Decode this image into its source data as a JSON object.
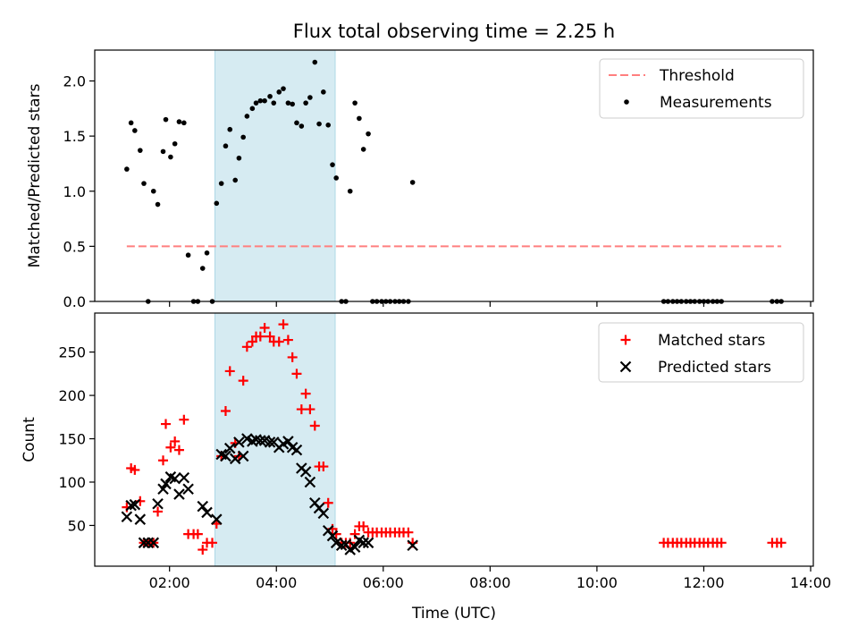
{
  "chart_data": {
    "title": "Flux total observing time = 2.25 h",
    "x_axis": {
      "label": "Time (UTC)",
      "range_hours": [
        0.6,
        14.05
      ],
      "ticks": [
        {
          "value": 2,
          "label": "02:00"
        },
        {
          "value": 4,
          "label": "04:00"
        },
        {
          "value": 6,
          "label": "06:00"
        },
        {
          "value": 8,
          "label": "08:00"
        },
        {
          "value": 10,
          "label": "10:00"
        },
        {
          "value": 12,
          "label": "12:00"
        },
        {
          "value": 14,
          "label": "14:00"
        }
      ]
    },
    "highlight_span_hours": [
      2.85,
      5.1
    ],
    "top_panel": {
      "type": "scatter",
      "ylabel": "Matched/Predicted stars",
      "ylim": [
        0,
        2.28
      ],
      "ticks": [
        {
          "value": 0.0,
          "label": "0.0"
        },
        {
          "value": 0.5,
          "label": "0.5"
        },
        {
          "value": 1.0,
          "label": "1.0"
        },
        {
          "value": 1.5,
          "label": "1.5"
        },
        {
          "value": 2.0,
          "label": "2.0"
        }
      ],
      "legend": {
        "placement": "upper right",
        "entries": [
          {
            "label": "Threshold",
            "kind": "dashed-line",
            "color": "#ff7f7f"
          },
          {
            "label": "Measurements",
            "kind": "dot",
            "color": "#000000"
          }
        ]
      },
      "threshold": {
        "value": 0.5,
        "x_range_hours": [
          1.2,
          13.45
        ],
        "color": "#ff7f7f"
      },
      "measurements": [
        [
          1.2,
          1.2
        ],
        [
          1.28,
          1.62
        ],
        [
          1.35,
          1.55
        ],
        [
          1.45,
          1.37
        ],
        [
          1.52,
          1.07
        ],
        [
          1.6,
          0.0
        ],
        [
          1.7,
          1.0
        ],
        [
          1.78,
          0.88
        ],
        [
          1.88,
          1.36
        ],
        [
          1.93,
          1.65
        ],
        [
          2.02,
          1.31
        ],
        [
          2.1,
          1.43
        ],
        [
          2.18,
          1.63
        ],
        [
          2.27,
          1.62
        ],
        [
          2.35,
          0.42
        ],
        [
          2.45,
          0.0
        ],
        [
          2.53,
          0.0
        ],
        [
          2.62,
          0.3
        ],
        [
          2.7,
          0.44
        ],
        [
          2.8,
          0.0
        ],
        [
          2.88,
          0.89
        ],
        [
          2.97,
          1.07
        ],
        [
          3.05,
          1.41
        ],
        [
          3.13,
          1.56
        ],
        [
          3.23,
          1.1
        ],
        [
          3.3,
          1.3
        ],
        [
          3.38,
          1.49
        ],
        [
          3.45,
          1.68
        ],
        [
          3.55,
          1.75
        ],
        [
          3.62,
          1.8
        ],
        [
          3.7,
          1.82
        ],
        [
          3.78,
          1.82
        ],
        [
          3.88,
          1.86
        ],
        [
          3.95,
          1.8
        ],
        [
          4.05,
          1.9
        ],
        [
          4.13,
          1.93
        ],
        [
          4.22,
          1.8
        ],
        [
          4.3,
          1.79
        ],
        [
          4.38,
          1.62
        ],
        [
          4.47,
          1.59
        ],
        [
          4.55,
          1.8
        ],
        [
          4.63,
          1.85
        ],
        [
          4.72,
          2.17
        ],
        [
          4.8,
          1.61
        ],
        [
          4.88,
          1.9
        ],
        [
          4.97,
          1.6
        ],
        [
          5.05,
          1.24
        ],
        [
          5.12,
          1.12
        ],
        [
          5.22,
          0.0
        ],
        [
          5.3,
          0.0
        ],
        [
          5.38,
          1.0
        ],
        [
          5.47,
          1.8
        ],
        [
          5.55,
          1.66
        ],
        [
          5.63,
          1.38
        ],
        [
          5.72,
          1.52
        ],
        [
          5.8,
          0.0
        ],
        [
          5.88,
          0.0
        ],
        [
          5.97,
          0.0
        ],
        [
          6.05,
          0.0
        ],
        [
          6.13,
          0.0
        ],
        [
          6.22,
          0.0
        ],
        [
          6.3,
          0.0
        ],
        [
          6.38,
          0.0
        ],
        [
          6.47,
          0.0
        ],
        [
          6.55,
          1.08
        ],
        [
          11.25,
          0.0
        ],
        [
          11.33,
          0.0
        ],
        [
          11.42,
          0.0
        ],
        [
          11.5,
          0.0
        ],
        [
          11.58,
          0.0
        ],
        [
          11.67,
          0.0
        ],
        [
          11.75,
          0.0
        ],
        [
          11.83,
          0.0
        ],
        [
          11.92,
          0.0
        ],
        [
          12.0,
          0.0
        ],
        [
          12.08,
          0.0
        ],
        [
          12.17,
          0.0
        ],
        [
          12.25,
          0.0
        ],
        [
          12.33,
          0.0
        ],
        [
          13.28,
          0.0
        ],
        [
          13.37,
          0.0
        ],
        [
          13.45,
          0.0
        ]
      ]
    },
    "bottom_panel": {
      "type": "scatter",
      "ylabel": "Count",
      "ylim": [
        3,
        295
      ],
      "ticks": [
        {
          "value": 50,
          "label": "50"
        },
        {
          "value": 100,
          "label": "100"
        },
        {
          "value": 150,
          "label": "150"
        },
        {
          "value": 200,
          "label": "200"
        },
        {
          "value": 250,
          "label": "250"
        }
      ],
      "legend": {
        "placement": "upper right",
        "entries": [
          {
            "label": "Matched stars",
            "kind": "plus",
            "color": "#ff0000"
          },
          {
            "label": "Predicted stars",
            "kind": "x",
            "color": "#000000"
          }
        ]
      },
      "matched_stars": [
        [
          1.2,
          71
        ],
        [
          1.28,
          116
        ],
        [
          1.35,
          114
        ],
        [
          1.45,
          78
        ],
        [
          1.52,
          30
        ],
        [
          1.6,
          30
        ],
        [
          1.7,
          30
        ],
        [
          1.78,
          66
        ],
        [
          1.88,
          125
        ],
        [
          1.93,
          167
        ],
        [
          2.02,
          140
        ],
        [
          2.1,
          147
        ],
        [
          2.18,
          137
        ],
        [
          2.27,
          172
        ],
        [
          2.35,
          40
        ],
        [
          2.45,
          40
        ],
        [
          2.53,
          40
        ],
        [
          2.62,
          22
        ],
        [
          2.7,
          30
        ],
        [
          2.8,
          30
        ],
        [
          2.88,
          52
        ],
        [
          2.97,
          130
        ],
        [
          3.05,
          182
        ],
        [
          3.13,
          228
        ],
        [
          3.23,
          145
        ],
        [
          3.3,
          130
        ],
        [
          3.38,
          217
        ],
        [
          3.45,
          256
        ],
        [
          3.55,
          262
        ],
        [
          3.62,
          268
        ],
        [
          3.7,
          268
        ],
        [
          3.78,
          278
        ],
        [
          3.88,
          268
        ],
        [
          3.95,
          262
        ],
        [
          4.05,
          262
        ],
        [
          4.13,
          282
        ],
        [
          4.22,
          264
        ],
        [
          4.3,
          244
        ],
        [
          4.38,
          225
        ],
        [
          4.47,
          184
        ],
        [
          4.55,
          202
        ],
        [
          4.63,
          184
        ],
        [
          4.72,
          165
        ],
        [
          4.8,
          118
        ],
        [
          4.88,
          118
        ],
        [
          4.97,
          76
        ],
        [
          5.05,
          46
        ],
        [
          5.12,
          40
        ],
        [
          5.22,
          30
        ],
        [
          5.3,
          30
        ],
        [
          5.38,
          30
        ],
        [
          5.47,
          40
        ],
        [
          5.55,
          49
        ],
        [
          5.63,
          49
        ],
        [
          5.72,
          42
        ],
        [
          5.8,
          42
        ],
        [
          5.88,
          42
        ],
        [
          5.97,
          42
        ],
        [
          6.05,
          42
        ],
        [
          6.13,
          42
        ],
        [
          6.22,
          42
        ],
        [
          6.3,
          42
        ],
        [
          6.38,
          42
        ],
        [
          6.47,
          42
        ],
        [
          6.55,
          30
        ],
        [
          11.25,
          30
        ],
        [
          11.33,
          30
        ],
        [
          11.42,
          30
        ],
        [
          11.5,
          30
        ],
        [
          11.58,
          30
        ],
        [
          11.67,
          30
        ],
        [
          11.75,
          30
        ],
        [
          11.83,
          30
        ],
        [
          11.92,
          30
        ],
        [
          12.0,
          30
        ],
        [
          12.08,
          30
        ],
        [
          12.17,
          30
        ],
        [
          12.25,
          30
        ],
        [
          12.33,
          30
        ],
        [
          13.28,
          30
        ],
        [
          13.37,
          30
        ],
        [
          13.45,
          30
        ]
      ],
      "predicted_stars": [
        [
          1.2,
          60
        ],
        [
          1.28,
          73
        ],
        [
          1.35,
          74
        ],
        [
          1.45,
          57
        ],
        [
          1.52,
          30
        ],
        [
          1.6,
          30
        ],
        [
          1.7,
          30
        ],
        [
          1.78,
          75
        ],
        [
          1.88,
          92
        ],
        [
          1.93,
          98
        ],
        [
          2.02,
          106
        ],
        [
          2.1,
          104
        ],
        [
          2.18,
          86
        ],
        [
          2.27,
          105
        ],
        [
          2.35,
          92
        ],
        [
          2.62,
          72
        ],
        [
          2.7,
          65
        ],
        [
          2.88,
          57
        ],
        [
          2.97,
          132
        ],
        [
          3.05,
          130
        ],
        [
          3.13,
          139
        ],
        [
          3.23,
          127
        ],
        [
          3.3,
          146
        ],
        [
          3.38,
          130
        ],
        [
          3.45,
          150
        ],
        [
          3.55,
          147
        ],
        [
          3.62,
          149
        ],
        [
          3.7,
          148
        ],
        [
          3.78,
          148
        ],
        [
          3.88,
          146
        ],
        [
          3.95,
          146
        ],
        [
          4.05,
          140
        ],
        [
          4.13,
          144
        ],
        [
          4.22,
          147
        ],
        [
          4.3,
          140
        ],
        [
          4.38,
          137
        ],
        [
          4.47,
          116
        ],
        [
          4.55,
          112
        ],
        [
          4.63,
          100
        ],
        [
          4.72,
          76
        ],
        [
          4.8,
          70
        ],
        [
          4.88,
          64
        ],
        [
          4.97,
          44
        ],
        [
          5.05,
          38
        ],
        [
          5.12,
          30
        ],
        [
          5.22,
          27
        ],
        [
          5.3,
          28
        ],
        [
          5.38,
          22
        ],
        [
          5.47,
          25
        ],
        [
          5.55,
          33
        ],
        [
          5.63,
          30
        ],
        [
          5.72,
          30
        ],
        [
          6.55,
          27
        ]
      ]
    }
  }
}
